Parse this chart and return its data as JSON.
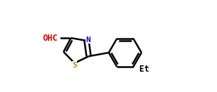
{
  "bg_color": "#ffffff",
  "bond_color": "#000000",
  "N_color": "#0000cc",
  "S_color": "#cc8800",
  "O_color": "#cc0000",
  "line_width": 1.8,
  "font_family": "monospace",
  "label_OHC": "OHC",
  "label_N": "N",
  "label_S": "S",
  "label_Et": "Et",
  "fig_width": 3.07,
  "fig_height": 1.31,
  "dpi": 100
}
